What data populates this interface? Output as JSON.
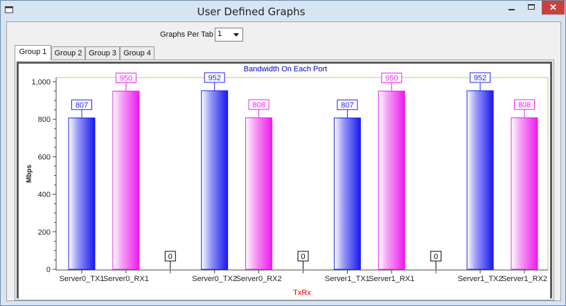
{
  "window": {
    "title": "User Defined Graphs"
  },
  "toolbar": {
    "graphs_per_tab_label": "Graphs Per Tab",
    "graphs_per_tab_value": "1"
  },
  "tabs": [
    {
      "label": "Group 1",
      "active": true
    },
    {
      "label": "Group 2",
      "active": false
    },
    {
      "label": "Group 3",
      "active": false
    },
    {
      "label": "Group 4",
      "active": false
    }
  ],
  "colors": {
    "tx": "#2020ee",
    "rx": "#ee20ee",
    "title": "#0000cc",
    "xlabel": "#ee0000"
  },
  "chart_data": {
    "type": "bar",
    "title": "Bandwidth On Each Port",
    "xlabel": "TxRx",
    "ylabel": "Mbps",
    "ylim": [
      0,
      1000
    ],
    "yticks": [
      "0",
      "200",
      "400",
      "600",
      "800",
      "1,000"
    ],
    "categories": [
      "Server0_TX1",
      "Server0_RX1",
      "",
      "Server0_TX2",
      "Server0_RX2",
      "",
      "Server1_TX1",
      "Server1_RX1",
      "",
      "Server1_TX2",
      "Server1_RX2"
    ],
    "values": [
      807,
      950,
      0,
      952,
      808,
      0,
      807,
      950,
      0,
      952,
      808
    ],
    "value_labels": [
      "807",
      "950",
      "0",
      "952",
      "808",
      "0",
      "807",
      "950",
      "0",
      "952",
      "808"
    ],
    "kinds": [
      "tx",
      "rx",
      "gap",
      "tx",
      "rx",
      "gap",
      "tx",
      "rx",
      "gap",
      "tx",
      "rx"
    ]
  }
}
